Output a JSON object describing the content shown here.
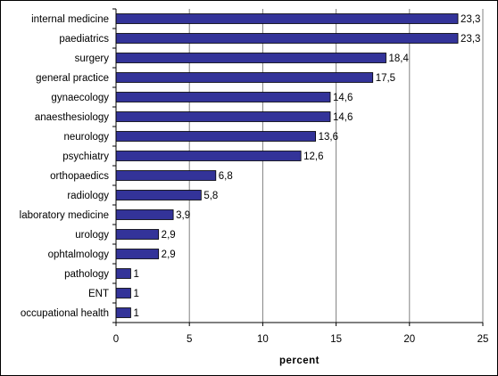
{
  "chart_data": {
    "type": "bar",
    "orientation": "horizontal",
    "categories": [
      "internal medicine",
      "paediatrics",
      "surgery",
      "general practice",
      "gynaecology",
      "anaesthesiology",
      "neurology",
      "psychiatry",
      "orthopaedics",
      "radiology",
      "laboratory medicine",
      "urology",
      "ophtalmology",
      "pathology",
      "ENT",
      "occupational health"
    ],
    "values": [
      23.3,
      23.3,
      18.4,
      17.5,
      14.6,
      14.6,
      13.6,
      12.6,
      6.8,
      5.8,
      3.9,
      2.9,
      2.9,
      1,
      1,
      1
    ],
    "value_labels": [
      "23,3",
      "23,3",
      "18,4",
      "17,5",
      "14,6",
      "14,6",
      "13,6",
      "12,6",
      "6,8",
      "5,8",
      "3,9",
      "2,9",
      "2,9",
      "1",
      "1",
      "1"
    ],
    "xlabel": "percent",
    "xlim": [
      0,
      25
    ],
    "xticks": [
      0,
      5,
      10,
      15,
      20,
      25
    ],
    "xtick_labels": [
      "0",
      "5",
      "10",
      "15",
      "20",
      "25"
    ],
    "grid": "vertical",
    "legend": "none",
    "colors": {
      "bar_fill": "#333399",
      "bar_stroke": "#000000",
      "grid": "#808080",
      "axis": "#000000"
    }
  }
}
